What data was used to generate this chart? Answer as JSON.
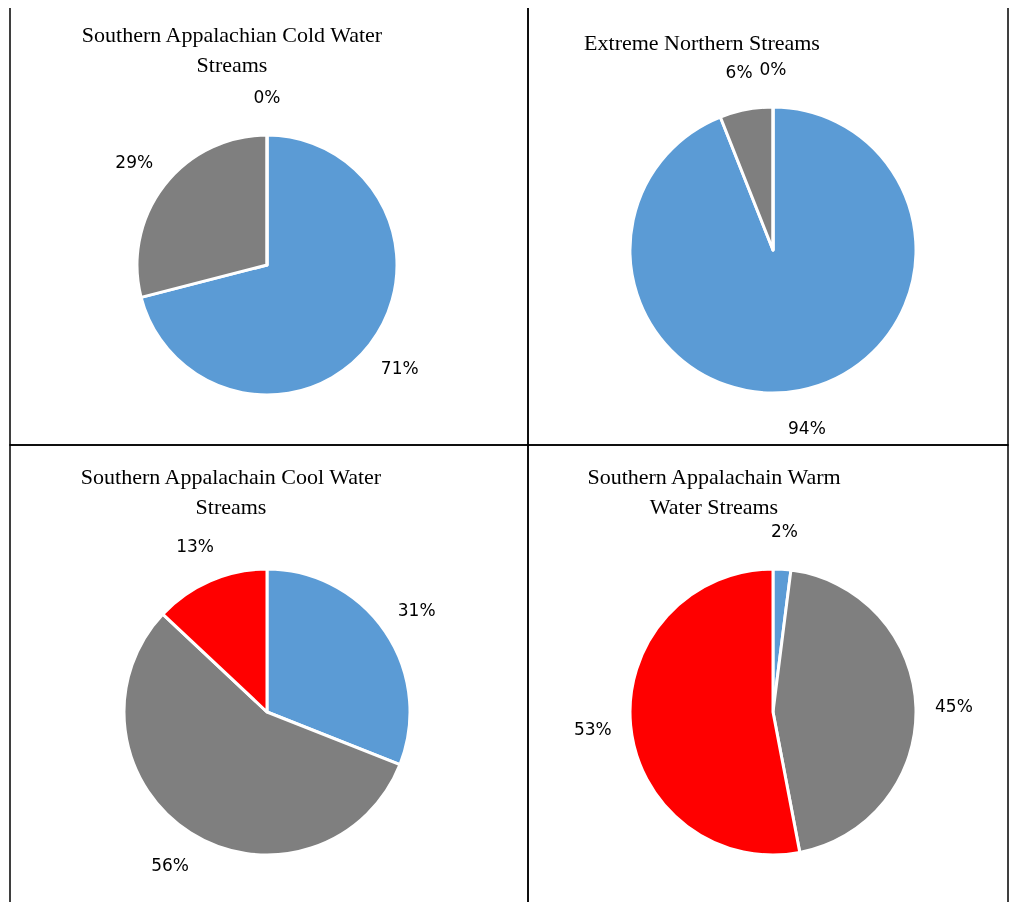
{
  "chart_data": [
    {
      "type": "pie",
      "title": "Southern Appalachian Cold Water Streams",
      "categories": [
        null,
        null,
        null
      ],
      "values": [
        71,
        29,
        0
      ],
      "colors": [
        "#5b9bd5",
        "#7f7f7f",
        "#ff0000"
      ],
      "value_labels": [
        "71%",
        "29%",
        "0%"
      ]
    },
    {
      "type": "pie",
      "title": "Extreme Northern Streams",
      "categories": [
        null,
        null,
        null
      ],
      "values": [
        94,
        6,
        0
      ],
      "colors": [
        "#5b9bd5",
        "#7f7f7f",
        "#ff0000"
      ],
      "value_labels": [
        "94%",
        "6%",
        "0%"
      ]
    },
    {
      "type": "pie",
      "title": "Southern Appalachain Cool Water Streams",
      "categories": [
        null,
        null,
        null
      ],
      "values": [
        31,
        56,
        13
      ],
      "colors": [
        "#5b9bd5",
        "#7f7f7f",
        "#ff0000"
      ],
      "value_labels": [
        "31%",
        "56%",
        "13%"
      ]
    },
    {
      "type": "pie",
      "title": "Southern Appalachain Warm Water Streams",
      "categories": [
        null,
        null,
        null
      ],
      "values": [
        2,
        45,
        53
      ],
      "colors": [
        "#5b9bd5",
        "#7f7f7f",
        "#ff0000"
      ],
      "value_labels": [
        "2%",
        "45%",
        "53%"
      ]
    }
  ]
}
